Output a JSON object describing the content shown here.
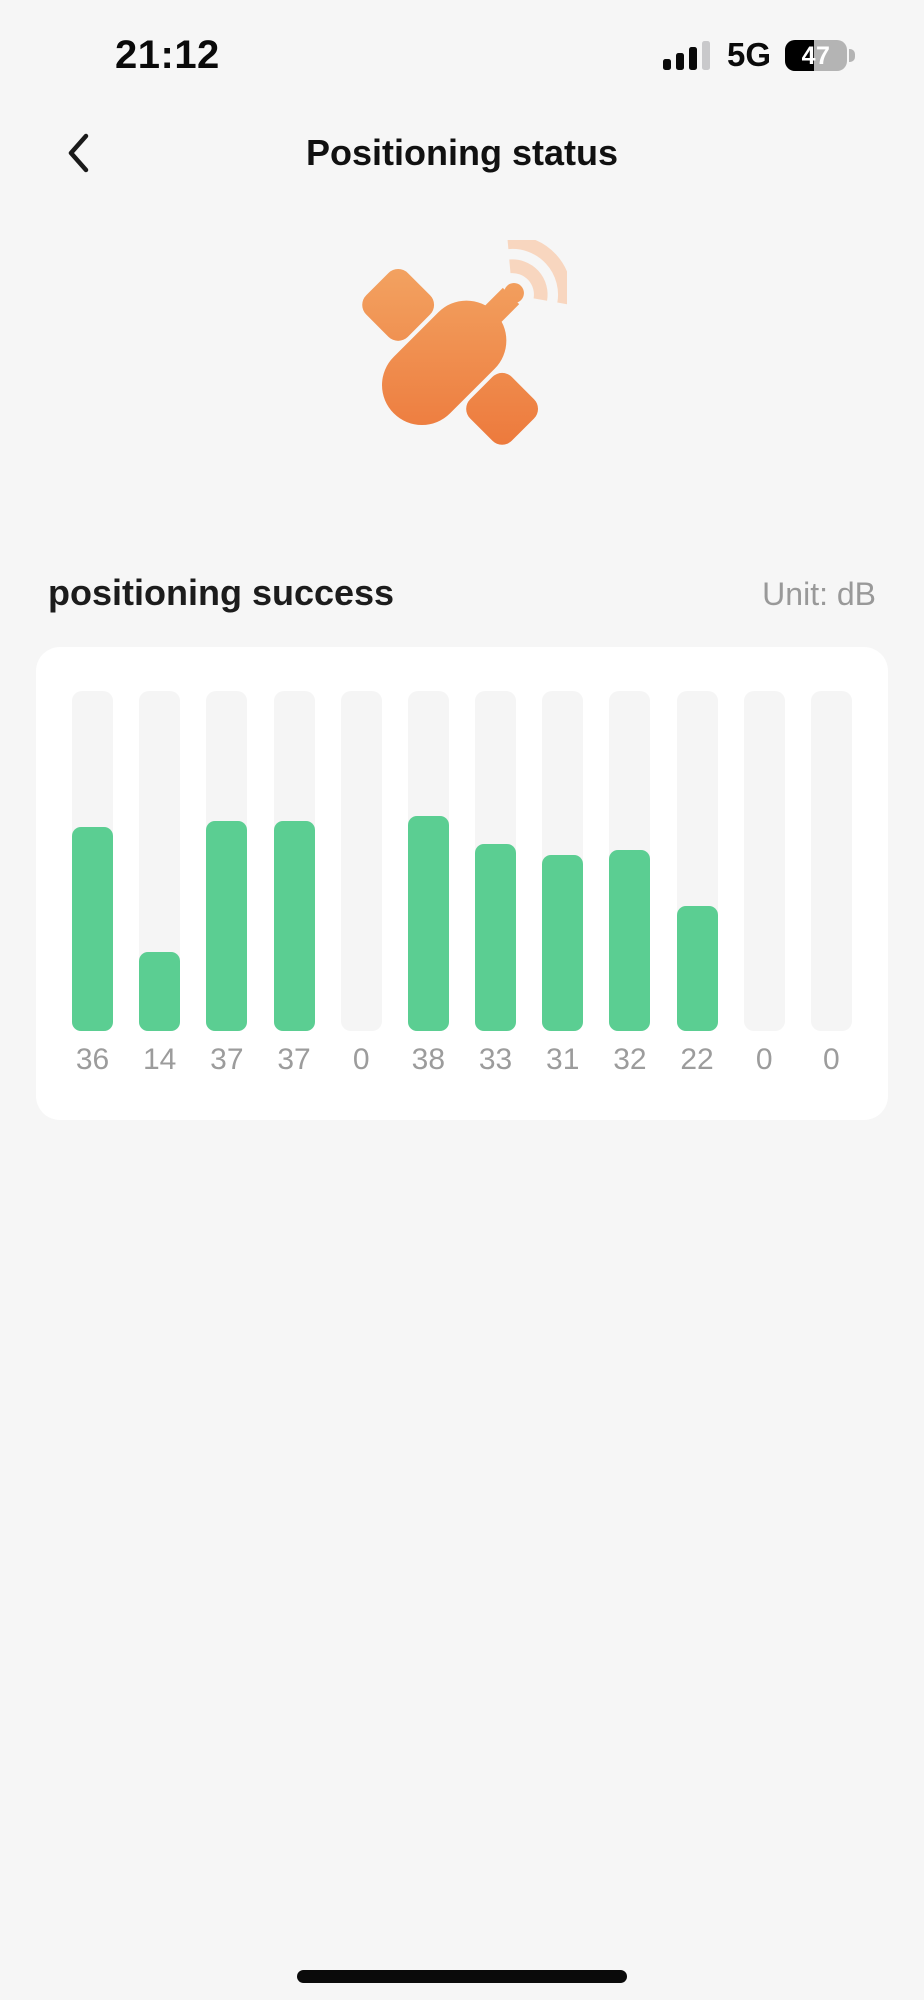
{
  "status_bar": {
    "time": "21:12",
    "network": "5G",
    "battery_percent": "47"
  },
  "header": {
    "title": "Positioning status"
  },
  "section": {
    "heading": "positioning success",
    "unit_label": "Unit: dB"
  },
  "chart_data": {
    "type": "bar",
    "title": "positioning success",
    "unit": "dB",
    "values": [
      36,
      14,
      37,
      37,
      0,
      38,
      33,
      31,
      32,
      22,
      0,
      0
    ],
    "value_labels": [
      "36",
      "14",
      "37",
      "37",
      "0",
      "38",
      "33",
      "31",
      "32",
      "22",
      "0",
      "0"
    ],
    "ylim": [
      0,
      60
    ],
    "grid": false,
    "legend": false,
    "value_labels_position": "below-bars",
    "bar_color": "#5BCE92",
    "track_color": "#F5F5F5",
    "label_color": "#9C9C9C"
  },
  "colors": {
    "page_background": "#F6F6F6",
    "card_background": "#FFFFFF",
    "accent_green": "#5BCE92",
    "satellite_orange_light": "#F5B26F",
    "satellite_orange_dark": "#EB6F33",
    "satellite_wave": "#F8D6BF",
    "text_primary": "#1C1C1C",
    "text_secondary": "#999999"
  }
}
